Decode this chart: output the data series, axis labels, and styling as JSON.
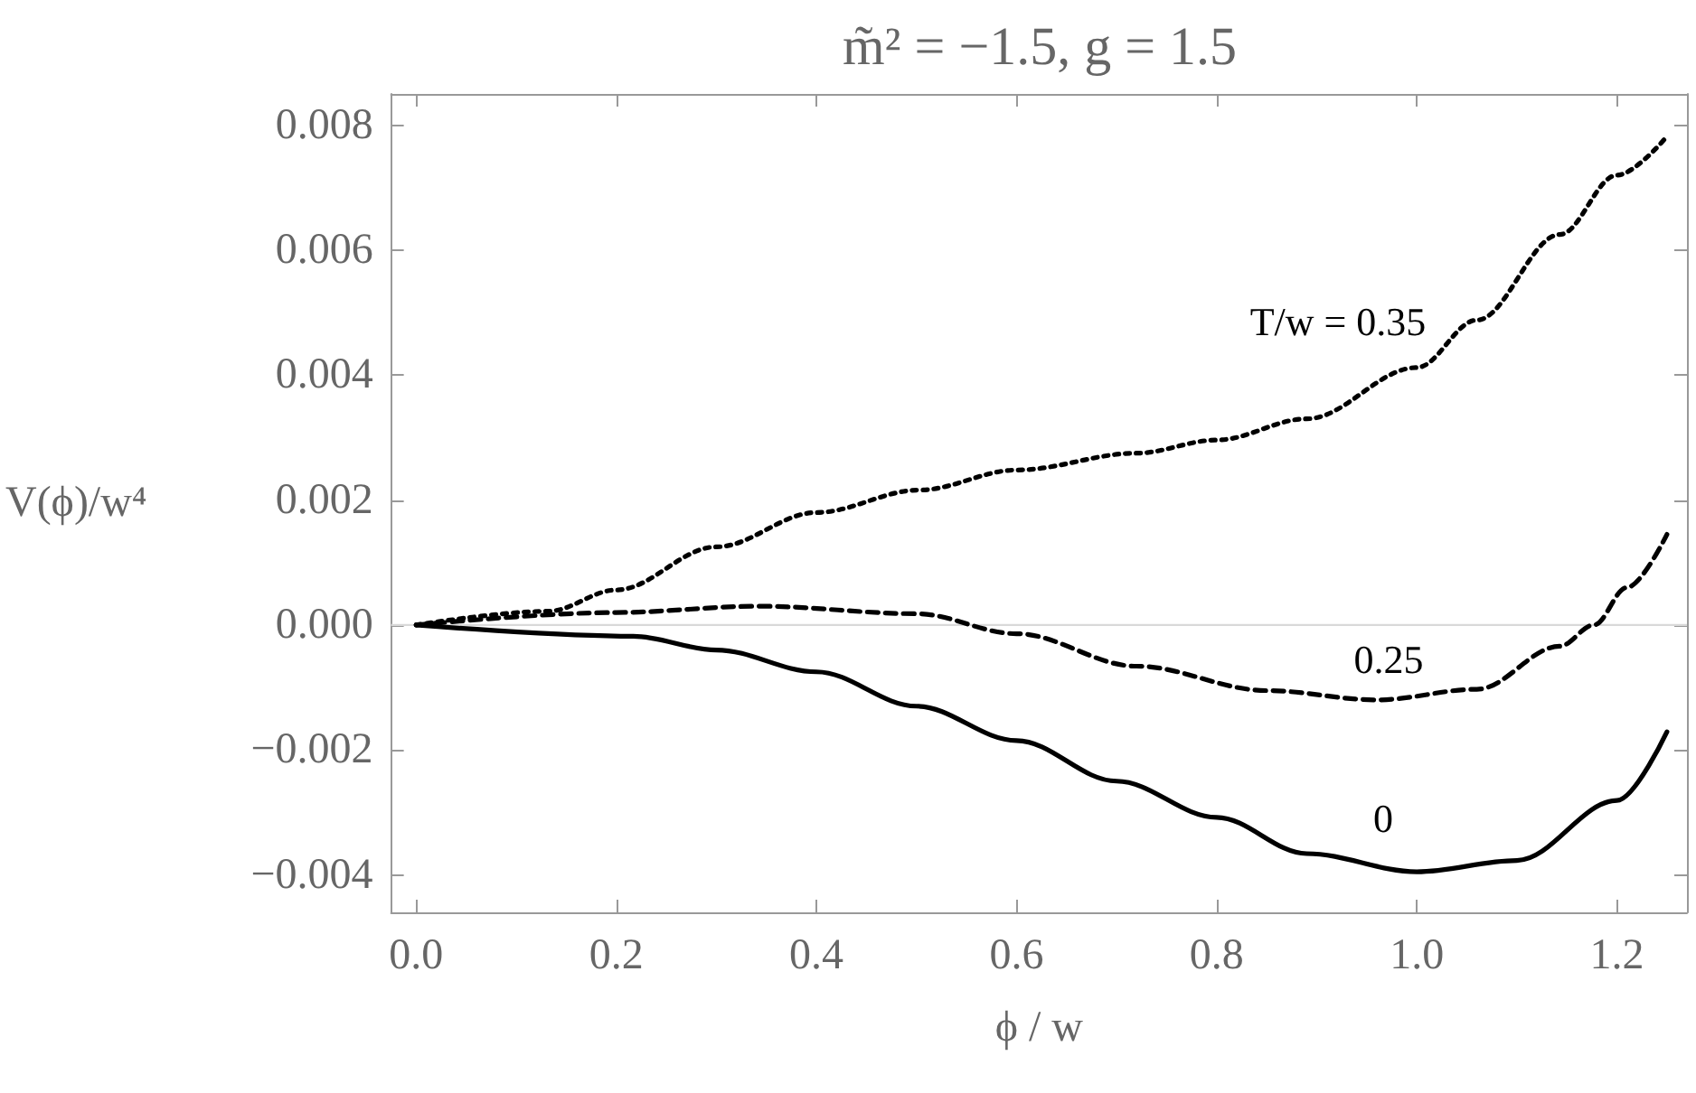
{
  "chart_data": {
    "type": "line",
    "title": "m̃² = −1.5, g = 1.5",
    "xlabel": "ϕ / w",
    "ylabel": "V(ϕ)/w⁴",
    "xlim": [
      -0.025,
      1.27
    ],
    "ylim": [
      -0.0046,
      0.0085
    ],
    "xticks": [
      {
        "value": 0,
        "label": "0.0"
      },
      {
        "value": 0.2,
        "label": "0.2"
      },
      {
        "value": 0.4,
        "label": "0.4"
      },
      {
        "value": 0.6,
        "label": "0.6"
      },
      {
        "value": 0.8,
        "label": "0.8"
      },
      {
        "value": 1,
        "label": "1.0"
      },
      {
        "value": 1.2,
        "label": "1.2"
      }
    ],
    "yticks": [
      {
        "value": -0.004,
        "label": "−0.004"
      },
      {
        "value": -0.002,
        "label": "−0.002"
      },
      {
        "value": 0,
        "label": "0.000"
      },
      {
        "value": 0.002,
        "label": "0.002"
      },
      {
        "value": 0.004,
        "label": "0.004"
      },
      {
        "value": 0.006,
        "label": "0.006"
      },
      {
        "value": 0.008,
        "label": "0.008"
      }
    ],
    "grid": false,
    "marker": "none",
    "ref_lines": [
      {
        "axis": "y",
        "value": 0,
        "color": "#d9d9d9"
      }
    ],
    "series": [
      {
        "color": "#000000",
        "line_style": "solid",
        "x": [
          0,
          0.217,
          0.3,
          0.4,
          0.5,
          0.6,
          0.7,
          0.8,
          0.89,
          1.0,
          1.1,
          1.2,
          1.25
        ],
        "values": [
          0,
          -0.00018,
          -0.0004,
          -0.00075,
          -0.0013,
          -0.00185,
          -0.0025,
          -0.00308,
          -0.00366,
          -0.00395,
          -0.00377,
          -0.00281,
          -0.00171
        ]
      },
      {
        "color": "#000000",
        "line_style": "dashed",
        "x": [
          0,
          0.2,
          0.343,
          0.5,
          0.6,
          0.72,
          0.85,
          0.96,
          1.06,
          1.143,
          1.177,
          1.21,
          1.25
        ],
        "values": [
          0,
          0.0002,
          0.0003,
          0.00018,
          -0.00014,
          -0.00066,
          -0.00105,
          -0.0012,
          -0.00103,
          -0.00034,
          0,
          0.0006,
          0.00145
        ]
      },
      {
        "color": "#000000",
        "line_style": "dotted",
        "x": [
          0,
          0.132,
          0.2,
          0.3,
          0.4,
          0.503,
          0.6,
          0.72,
          0.8,
          0.89,
          1.0,
          1.06,
          1.143,
          1.2,
          1.25
        ],
        "values": [
          0,
          0.00022,
          0.00056,
          0.00125,
          0.0018,
          0.00216,
          0.00248,
          0.00275,
          0.00296,
          0.0033,
          0.00412,
          0.00488,
          0.00625,
          0.0072,
          0.00782
        ]
      }
    ],
    "annotations": [
      "T/w = 0.35",
      "0.25",
      "0"
    ]
  }
}
